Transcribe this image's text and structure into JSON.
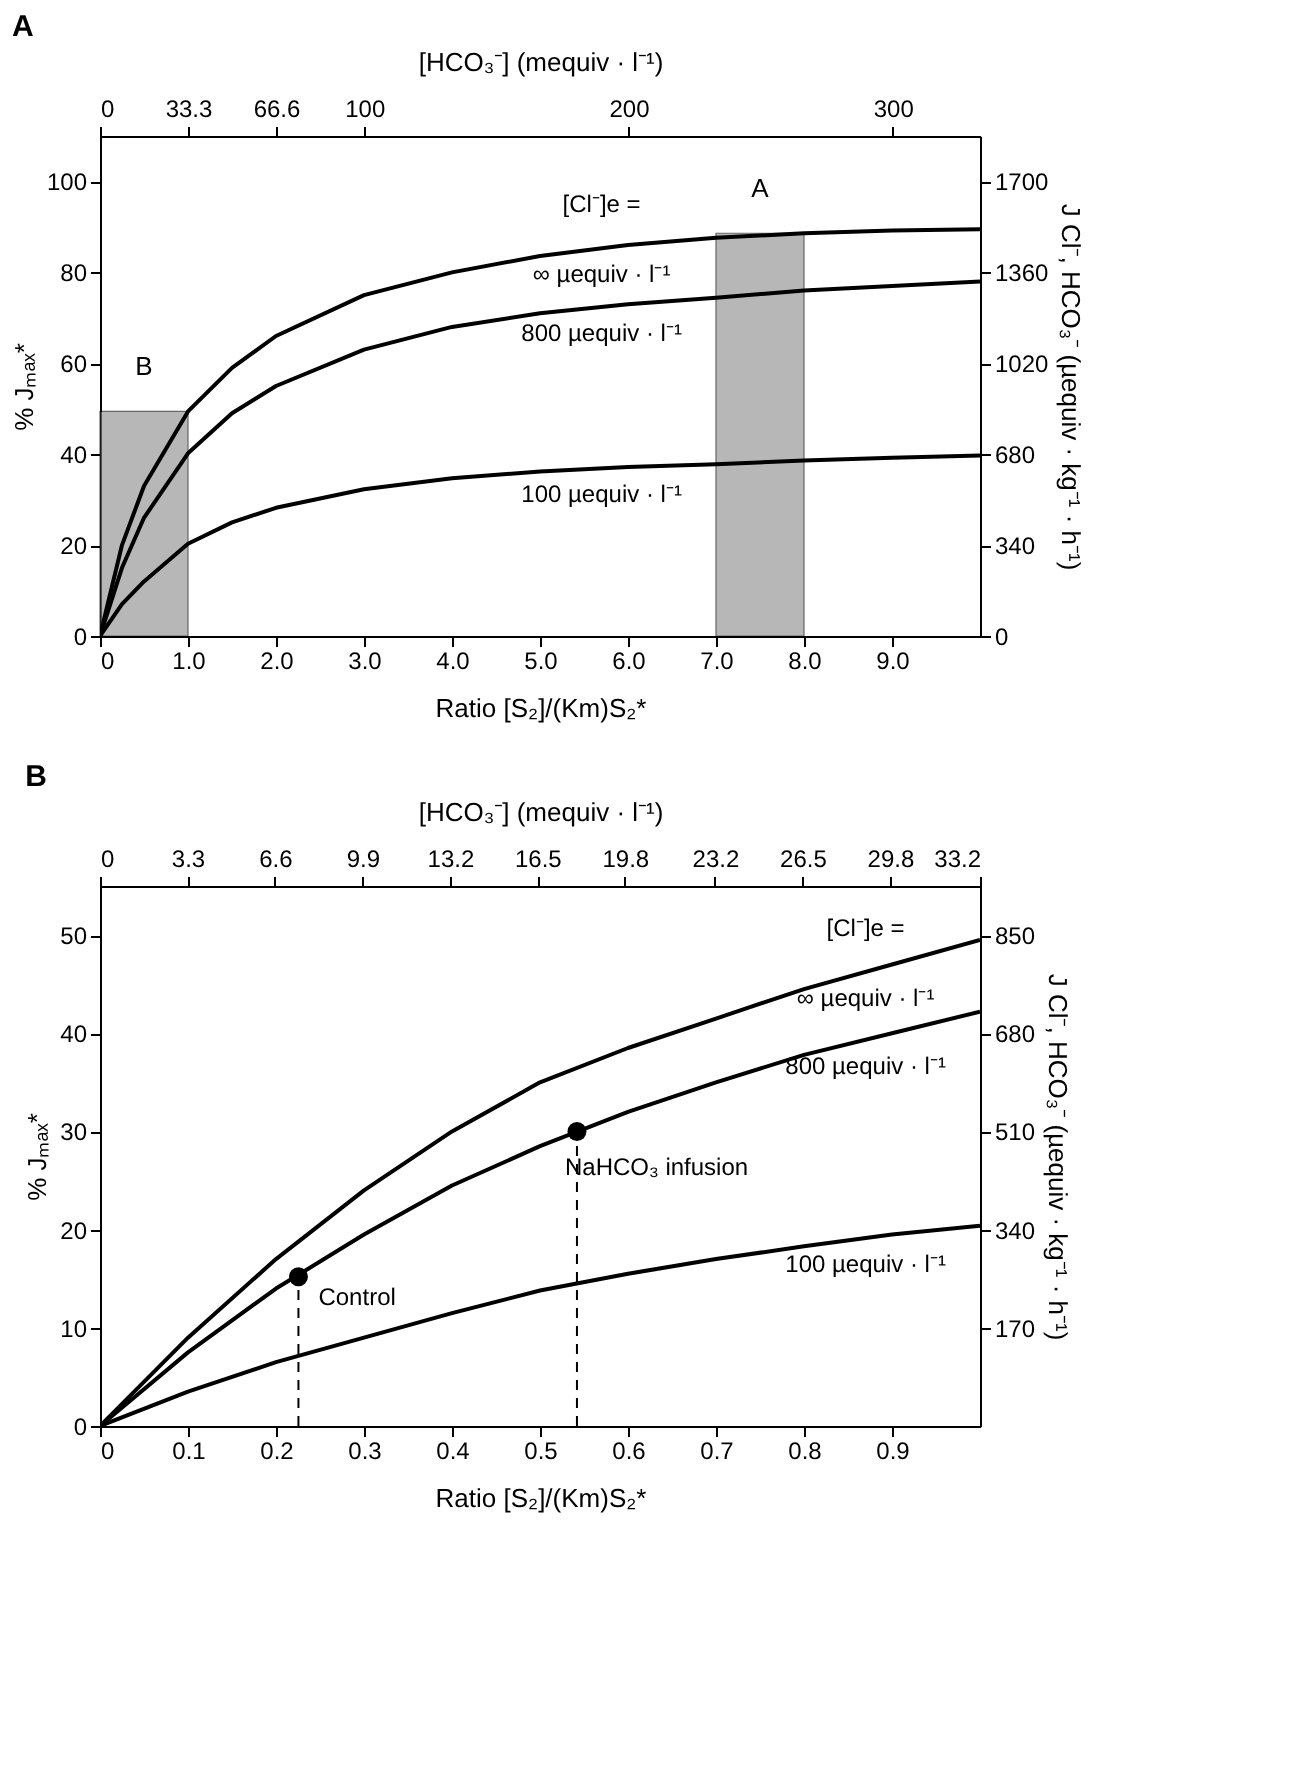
{
  "chart_data": [
    {
      "type": "line",
      "title": "A",
      "x2label": "[HCO₃⁻] (mequiv · l⁻¹)",
      "xlabel": "Ratio [S₂]/(Km)S₂*",
      "ylabel": "% Jₘₐₓ*",
      "y2label": "J Cl⁻, HCO₃⁻ (µequiv · kg⁻¹ · h⁻¹)",
      "xlim": [
        0,
        10
      ],
      "xticks": [
        0,
        {
          "value": 1,
          "label": "1.0"
        },
        {
          "value": 2,
          "label": "2.0"
        },
        {
          "value": 3,
          "label": "3.0"
        },
        {
          "value": 4,
          "label": "4.0"
        },
        {
          "value": 5,
          "label": "5.0"
        },
        {
          "value": 6,
          "label": "6.0"
        },
        {
          "value": 7,
          "label": "7.0"
        },
        {
          "value": 8,
          "label": "8.0"
        },
        {
          "value": 9,
          "label": "9.0"
        }
      ],
      "x2lim": [
        0,
        333
      ],
      "x2ticks": [
        0,
        33.3,
        66.6,
        100,
        200,
        300
      ],
      "ylim": [
        0,
        110
      ],
      "yticks": [
        0,
        20,
        40,
        60,
        80,
        100
      ],
      "y2lim": [
        0,
        1870
      ],
      "y2ticks": [
        0,
        340,
        680,
        1020,
        1360,
        1700
      ],
      "series": [
        {
          "name": "∞ µequiv · l⁻¹",
          "color": "#000000",
          "x": [
            0,
            0.25,
            0.5,
            1,
            1.5,
            2,
            3,
            4,
            5,
            6,
            7,
            8,
            9,
            10
          ],
          "values": [
            0,
            20,
            33,
            49.4,
            59,
            66,
            75,
            80,
            83.6,
            86,
            87.6,
            88.6,
            89.2,
            89.5
          ]
        },
        {
          "name": "800 µequiv · l⁻¹",
          "color": "#000000",
          "x": [
            0,
            0.25,
            0.5,
            1,
            1.5,
            2,
            3,
            4,
            5,
            6,
            7,
            8,
            9,
            10
          ],
          "values": [
            0,
            15,
            26,
            40.2,
            49,
            55,
            63,
            68,
            71,
            73,
            74.4,
            76,
            77,
            78
          ]
        },
        {
          "name": "100 µequiv · l⁻¹",
          "color": "#000000",
          "x": [
            0,
            0.25,
            0.5,
            1,
            1.5,
            2,
            3,
            4,
            5,
            6,
            7,
            8,
            9,
            10
          ],
          "values": [
            0,
            7,
            12,
            20.3,
            25,
            28.2,
            32.3,
            34.7,
            36.2,
            37.2,
            37.8,
            38.6,
            39.2,
            39.7
          ]
        }
      ],
      "bands": [
        {
          "axis": "x",
          "from": 0,
          "to": 1,
          "label": "B",
          "color": "#888888"
        },
        {
          "axis": "x",
          "from": 7,
          "to": 8,
          "label": "A",
          "color": "#888888"
        }
      ],
      "annotations": [
        "[Cl⁻]e ="
      ],
      "grid": false,
      "line_style": "solid"
    },
    {
      "type": "line",
      "title": "B",
      "x2label": "[HCO₃⁻] (mequiv · l⁻¹)",
      "xlabel": "Ratio [S₂]/(Km)S₂*",
      "ylabel": "% Jₘₐₓ*",
      "y2label": "J Cl⁻, HCO₃⁻ (µequiv · kg⁻¹ · h⁻¹)",
      "xlim": [
        0,
        1
      ],
      "xticks": [
        0,
        0.1,
        0.2,
        0.3,
        0.4,
        0.5,
        0.6,
        0.7,
        0.8,
        0.9
      ],
      "x2lim": [
        0,
        33.2
      ],
      "x2ticks": [
        0,
        3.3,
        6.6,
        9.9,
        13.2,
        16.5,
        19.8,
        23.2,
        26.5,
        29.8,
        33.2
      ],
      "ylim": [
        0,
        55
      ],
      "yticks": [
        0,
        10,
        20,
        30,
        40,
        50
      ],
      "y2lim": [
        0,
        935
      ],
      "y2ticks": [
        170,
        340,
        510,
        680,
        850
      ],
      "series": [
        {
          "name": "∞ µequiv · l⁻¹",
          "color": "#000000",
          "x": [
            0,
            0.1,
            0.2,
            0.3,
            0.4,
            0.5,
            0.6,
            0.7,
            0.8,
            0.9,
            1
          ],
          "values": [
            0,
            9,
            17,
            24,
            30,
            35,
            38.5,
            41.5,
            44.5,
            47,
            49.5
          ]
        },
        {
          "name": "800 µequiv · l⁻¹",
          "color": "#000000",
          "x": [
            0,
            0.1,
            0.2,
            0.3,
            0.4,
            0.5,
            0.6,
            0.7,
            0.8,
            0.9,
            1
          ],
          "values": [
            0,
            7.5,
            14,
            19.5,
            24.5,
            28.5,
            32,
            35,
            37.8,
            40,
            42.2
          ]
        },
        {
          "name": "100 µequiv · l⁻¹",
          "color": "#000000",
          "x": [
            0,
            0.1,
            0.2,
            0.3,
            0.4,
            0.5,
            0.6,
            0.7,
            0.8,
            0.9,
            1
          ],
          "values": [
            0,
            3.5,
            6.5,
            9,
            11.5,
            13.8,
            15.5,
            17,
            18.3,
            19.5,
            20.4
          ]
        },
        {
          "type": "scatter",
          "color": "#000000",
          "marker": "circle",
          "x": [
            0.2255,
            0.542
          ],
          "values": [
            15.2,
            30
          ]
        }
      ],
      "ref_lines": [
        {
          "axis": "x",
          "value": 0.2255,
          "line_style": "dashed",
          "color": "#000000"
        },
        {
          "axis": "x",
          "value": 0.542,
          "line_style": "dashed",
          "color": "#000000"
        }
      ],
      "annotations": [
        "[Cl⁻]e =",
        {
          "text": "Control",
          "x": 0.2255,
          "y": 15.2
        },
        {
          "text": "NaHCO₃ infusion",
          "x": 0.542,
          "y": 30
        }
      ],
      "grid": false,
      "line_style": "solid"
    }
  ]
}
